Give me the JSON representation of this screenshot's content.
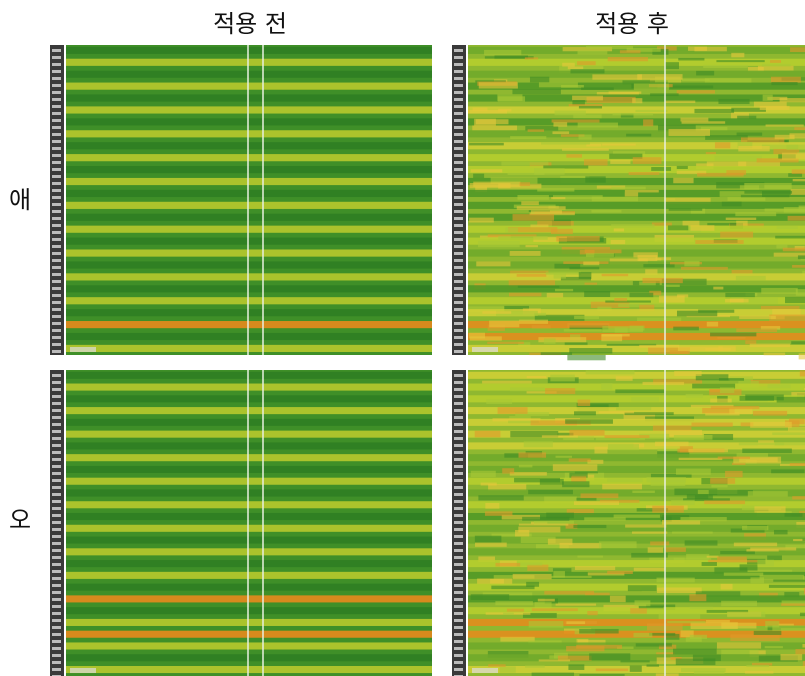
{
  "columns": [
    "적용 전",
    "적용 후"
  ],
  "rows": [
    "애",
    "오"
  ]
}
